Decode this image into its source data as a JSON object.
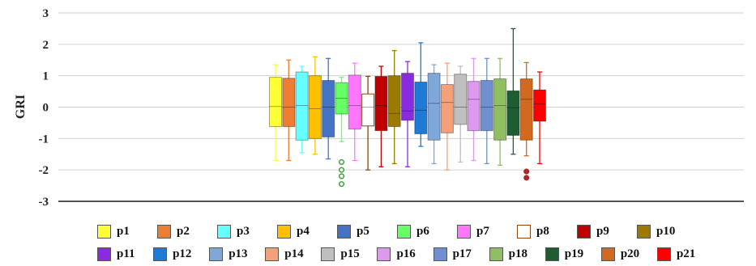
{
  "chart_data": {
    "type": "box",
    "title": "",
    "xlabel": "",
    "ylabel": "GRI",
    "ylim": [
      -3,
      3
    ],
    "yticks": [
      "3",
      "2",
      "1",
      "0",
      "-1",
      "-2",
      "-3"
    ],
    "grid": true,
    "legend_position": "bottom",
    "series": [
      {
        "name": "p1",
        "color": "#ffff33",
        "whisker_low": -1.7,
        "q1": -0.62,
        "median": 0.02,
        "q3": 0.95,
        "whisker_high": 1.35,
        "outliers": []
      },
      {
        "name": "p2",
        "color": "#ed7d31",
        "whisker_low": -1.7,
        "q1": -0.62,
        "median": 0.0,
        "q3": 0.92,
        "whisker_high": 1.5,
        "outliers": []
      },
      {
        "name": "p3",
        "color": "#66ffff",
        "whisker_low": -1.45,
        "q1": -1.05,
        "median": 0.05,
        "q3": 1.12,
        "whisker_high": 1.3,
        "outliers": []
      },
      {
        "name": "p4",
        "color": "#ffc000",
        "whisker_low": -1.5,
        "q1": -1.0,
        "median": -0.05,
        "q3": 1.0,
        "whisker_high": 1.6,
        "outliers": []
      },
      {
        "name": "p5",
        "color": "#4472c4",
        "whisker_low": -1.65,
        "q1": -0.95,
        "median": 0.0,
        "q3": 0.85,
        "whisker_high": 1.55,
        "outliers": []
      },
      {
        "name": "p6",
        "color": "#66ff66",
        "whisker_low": -1.1,
        "q1": -0.22,
        "median": 0.28,
        "q3": 0.78,
        "whisker_high": 0.95,
        "outliers": [
          -1.75,
          -2.0,
          -2.2,
          -2.45
        ]
      },
      {
        "name": "p7",
        "color": "#ff77ff",
        "whisker_low": -1.7,
        "q1": -0.7,
        "median": 0.05,
        "q3": 1.02,
        "whisker_high": 1.4,
        "outliers": []
      },
      {
        "name": "p8",
        "color": "#ffffff",
        "whisker_low": -2.0,
        "q1": -0.6,
        "median": 0.0,
        "q3": 0.42,
        "whisker_high": 0.98,
        "outliers": []
      },
      {
        "name": "p9",
        "color": "#c00000",
        "whisker_low": -1.9,
        "q1": -0.75,
        "median": 0.05,
        "q3": 0.98,
        "whisker_high": 1.3,
        "outliers": []
      },
      {
        "name": "p10",
        "color": "#9c7a00",
        "whisker_low": -1.8,
        "q1": -0.62,
        "median": -0.2,
        "q3": 1.0,
        "whisker_high": 1.8,
        "outliers": []
      },
      {
        "name": "p11",
        "color": "#8a2be2",
        "whisker_low": -1.9,
        "q1": -0.42,
        "median": -0.12,
        "q3": 1.08,
        "whisker_high": 1.45,
        "outliers": []
      },
      {
        "name": "p12",
        "color": "#1f7ad6",
        "whisker_low": -1.25,
        "q1": -0.85,
        "median": -0.1,
        "q3": 0.8,
        "whisker_high": 2.05,
        "outliers": []
      },
      {
        "name": "p13",
        "color": "#7fa7d9",
        "whisker_low": -1.8,
        "q1": -1.05,
        "median": 0.12,
        "q3": 1.08,
        "whisker_high": 1.35,
        "outliers": []
      },
      {
        "name": "p14",
        "color": "#f4a07a",
        "whisker_low": -2.0,
        "q1": -0.82,
        "median": 0.15,
        "q3": 0.72,
        "whisker_high": 1.4,
        "outliers": []
      },
      {
        "name": "p15",
        "color": "#bfbfbf",
        "whisker_low": -1.75,
        "q1": -0.55,
        "median": 0.0,
        "q3": 1.05,
        "whisker_high": 1.3,
        "outliers": []
      },
      {
        "name": "p16",
        "color": "#dd99ee",
        "whisker_low": -1.7,
        "q1": -0.75,
        "median": 0.25,
        "q3": 0.82,
        "whisker_high": 1.55,
        "outliers": []
      },
      {
        "name": "p17",
        "color": "#6f8fcf",
        "whisker_low": -1.8,
        "q1": -0.75,
        "median": 0.0,
        "q3": 0.85,
        "whisker_high": 1.55,
        "outliers": []
      },
      {
        "name": "p18",
        "color": "#8fbf60",
        "whisker_low": -1.85,
        "q1": -1.05,
        "median": 0.05,
        "q3": 0.9,
        "whisker_high": 1.55,
        "outliers": []
      },
      {
        "name": "p19",
        "color": "#1e5c32",
        "whisker_low": -1.5,
        "q1": -0.9,
        "median": -0.02,
        "q3": 0.52,
        "whisker_high": 2.5,
        "outliers": []
      },
      {
        "name": "p20",
        "color": "#d2691e",
        "whisker_low": -1.55,
        "q1": -1.05,
        "median": 0.25,
        "q3": 0.9,
        "whisker_high": 1.42,
        "outliers": [
          -2.05,
          -2.25
        ]
      },
      {
        "name": "p21",
        "color": "#ff0000",
        "whisker_low": -1.8,
        "q1": -0.45,
        "median": 0.1,
        "q3": 0.55,
        "whisker_high": 1.12,
        "outliers": []
      }
    ]
  }
}
